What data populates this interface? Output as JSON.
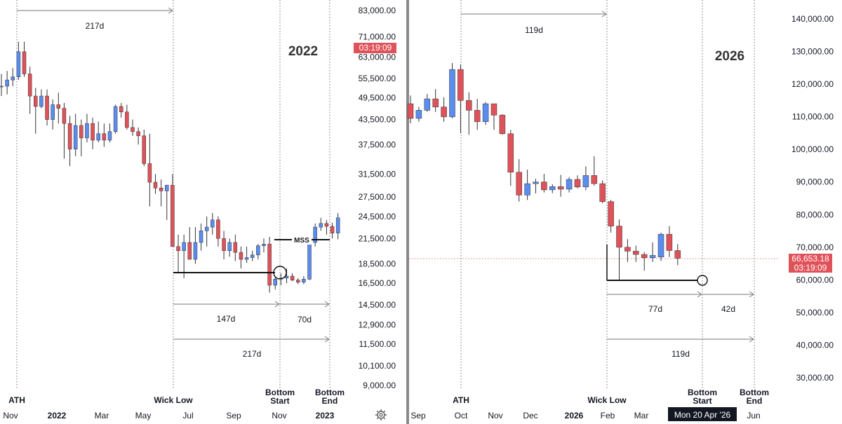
{
  "colors": {
    "up": "#5b8def",
    "down": "#e0525a",
    "tag": "#e0525a",
    "divider": "#8a8a8a",
    "crosshair": "#e0525a"
  },
  "chart_data": [
    {
      "type": "candlestick",
      "title": "2022",
      "price_axis": [
        "83,000.00",
        "71,000.00",
        "63,000.00",
        "55,500.00",
        "49,500.00",
        "43,500.00",
        "37,500.00",
        "31,500.00",
        "27,500.00",
        "24,500.00",
        "21,500.00",
        "18,500.00",
        "16,500.00",
        "14,500.00",
        "12,900.00",
        "11,500.00",
        "10,100.00",
        "9,000.00"
      ],
      "time_axis": [
        {
          "label": "Nov",
          "bold": false
        },
        {
          "label": "2022",
          "bold": true
        },
        {
          "label": "Mar",
          "bold": false
        },
        {
          "label": "May",
          "bold": false
        },
        {
          "label": "Jul",
          "bold": false
        },
        {
          "label": "Sep",
          "bold": false
        },
        {
          "label": "Nov",
          "bold": false
        },
        {
          "label": "2023",
          "bold": true
        }
      ],
      "price_tag": {
        "time": "03:19:09"
      },
      "events": [
        {
          "label": "ATH"
        },
        {
          "label": "Wick Low"
        },
        {
          "label": "Bottom Start"
        },
        {
          "label": "Bottom End"
        }
      ],
      "annotations": [
        "217d",
        "147d",
        "70d",
        "217d",
        "MSS"
      ],
      "candles_weekly": [
        [
          53000,
          57000,
          50000,
          53000
        ],
        [
          53000,
          58000,
          50500,
          55000
        ],
        [
          55000,
          59000,
          53000,
          56000
        ],
        [
          56000,
          69000,
          55000,
          65000
        ],
        [
          65000,
          69000,
          56000,
          57000
        ],
        [
          57000,
          59500,
          45000,
          50000
        ],
        [
          50000,
          52500,
          40000,
          47000
        ],
        [
          47000,
          52000,
          46500,
          50000
        ],
        [
          50000,
          52000,
          42000,
          43500
        ],
        [
          43500,
          49000,
          41000,
          47500
        ],
        [
          47500,
          51000,
          42500,
          46500
        ],
        [
          46500,
          48000,
          34500,
          42500
        ],
        [
          42500,
          44500,
          33000,
          36500
        ],
        [
          36500,
          45000,
          35000,
          42000
        ],
        [
          42000,
          43500,
          35000,
          39000
        ],
        [
          39000,
          45000,
          38000,
          42500
        ],
        [
          42500,
          44000,
          36500,
          38500
        ],
        [
          38500,
          43000,
          38000,
          40000
        ],
        [
          40000,
          42500,
          37000,
          38500
        ],
        [
          38500,
          42500,
          38000,
          40500
        ],
        [
          40500,
          47500,
          40000,
          47000
        ],
        [
          47000,
          48000,
          44000,
          45500
        ],
        [
          45500,
          47500,
          41000,
          41500
        ],
        [
          41500,
          43500,
          39500,
          40500
        ],
        [
          40500,
          41500,
          37500,
          39500
        ],
        [
          39500,
          41000,
          33000,
          33500
        ],
        [
          33500,
          40000,
          26000,
          30000
        ],
        [
          30000,
          31500,
          28000,
          29000
        ],
        [
          29000,
          30500,
          26000,
          28500
        ],
        [
          28500,
          29500,
          24000,
          29500
        ],
        [
          29500,
          31500,
          24000,
          20500
        ],
        [
          20500,
          22000,
          17500,
          20000
        ],
        [
          20000,
          22000,
          17000,
          21000
        ],
        [
          21000,
          23000,
          19500,
          19000
        ],
        [
          19000,
          23000,
          18500,
          21000
        ],
        [
          21000,
          23500,
          20000,
          22500
        ],
        [
          22500,
          24500,
          20500,
          23000
        ],
        [
          23000,
          25000,
          22000,
          24000
        ],
        [
          24000,
          24500,
          20500,
          21500
        ],
        [
          21500,
          22500,
          19000,
          20000
        ],
        [
          20000,
          21500,
          19300,
          21000
        ],
        [
          21000,
          22000,
          18800,
          19800
        ],
        [
          19800,
          20500,
          18000,
          19000
        ],
        [
          19000,
          20500,
          18600,
          19200
        ],
        [
          19200,
          20000,
          18800,
          19500
        ],
        [
          19500,
          20800,
          19000,
          20600
        ],
        [
          20600,
          21500,
          19800,
          20800
        ],
        [
          20800,
          21700,
          15600,
          16300
        ],
        [
          16300,
          17200,
          15900,
          16900
        ],
        [
          16900,
          17500,
          16300,
          17000
        ],
        [
          17000,
          18000,
          16500,
          17200
        ],
        [
          17200,
          17500,
          16700,
          16800
        ],
        [
          16800,
          17000,
          16400,
          16600
        ],
        [
          16600,
          17200,
          16400,
          16900
        ],
        [
          16900,
          21000,
          16800,
          21000
        ],
        [
          21000,
          23500,
          20500,
          23000
        ],
        [
          23000,
          24300,
          22500,
          23500
        ],
        [
          23500,
          24000,
          22000,
          23100
        ],
        [
          23100,
          23600,
          21500,
          22200
        ],
        [
          22200,
          25000,
          21400,
          24300
        ]
      ]
    },
    {
      "type": "candlestick",
      "title": "2026",
      "price_axis": [
        "140,000.00",
        "130,000.00",
        "120,000.00",
        "110,000.00",
        "100,000.00",
        "90,000.00",
        "80,000.00",
        "70,000.00",
        "60,000.00",
        "50,000.00",
        "40,000.00",
        "30,000.00"
      ],
      "time_axis": [
        {
          "label": "Sep",
          "bold": false
        },
        {
          "label": "Oct",
          "bold": false
        },
        {
          "label": "Nov",
          "bold": false
        },
        {
          "label": "Dec",
          "bold": false
        },
        {
          "label": "2026",
          "bold": true
        },
        {
          "label": "Feb",
          "bold": false
        },
        {
          "label": "Mar",
          "bold": false
        },
        {
          "label": "Jun",
          "bold": false
        }
      ],
      "price_tag": {
        "price": "66,653.18",
        "time": "03:19:09"
      },
      "crosshair_date": "Mon 20 Apr '26",
      "events": [
        {
          "label": "ATH"
        },
        {
          "label": "Wick Low"
        },
        {
          "label": "Bottom Start"
        },
        {
          "label": "Bottom End"
        }
      ],
      "annotations": [
        "119d",
        "77d",
        "42d",
        "119d"
      ],
      "candles_weekly": [
        [
          114000,
          116500,
          108000,
          109500
        ],
        [
          109500,
          113000,
          108500,
          112000
        ],
        [
          112000,
          117000,
          111500,
          115500
        ],
        [
          115500,
          118500,
          111500,
          113000
        ],
        [
          113000,
          116000,
          108500,
          110000
        ],
        [
          110000,
          126500,
          109500,
          124500
        ],
        [
          124500,
          126000,
          105000,
          115000
        ],
        [
          115000,
          117500,
          104500,
          112000
        ],
        [
          112000,
          115500,
          106000,
          108500
        ],
        [
          108500,
          114500,
          107500,
          114000
        ],
        [
          114000,
          113000,
          106000,
          110500
        ],
        [
          110500,
          110800,
          104500,
          104800
        ],
        [
          104800,
          106000,
          88800,
          93000
        ],
        [
          93000,
          97000,
          84000,
          86000
        ],
        [
          86000,
          93800,
          84500,
          89500
        ],
        [
          89500,
          91000,
          86500,
          90000
        ],
        [
          90000,
          92500,
          86800,
          87600
        ],
        [
          87600,
          89300,
          86600,
          88600
        ],
        [
          88600,
          92200,
          85500,
          87800
        ],
        [
          87800,
          91500,
          86800,
          90800
        ],
        [
          90800,
          92000,
          88000,
          88500
        ],
        [
          88500,
          94800,
          87500,
          92000
        ],
        [
          92000,
          97900,
          88900,
          89500
        ],
        [
          89500,
          90500,
          83500,
          84000
        ],
        [
          84000,
          84500,
          74500,
          76500
        ],
        [
          76500,
          78500,
          60000,
          70000
        ],
        [
          70000,
          72500,
          65500,
          68800
        ],
        [
          68800,
          70500,
          65500,
          67800
        ],
        [
          67800,
          68500,
          62800,
          66800
        ],
        [
          66800,
          71500,
          65500,
          67500
        ],
        [
          67000,
          74500,
          65800,
          74000
        ],
        [
          74000,
          76500,
          67000,
          69000
        ],
        [
          69000,
          71000,
          64500,
          66653
        ]
      ]
    }
  ]
}
